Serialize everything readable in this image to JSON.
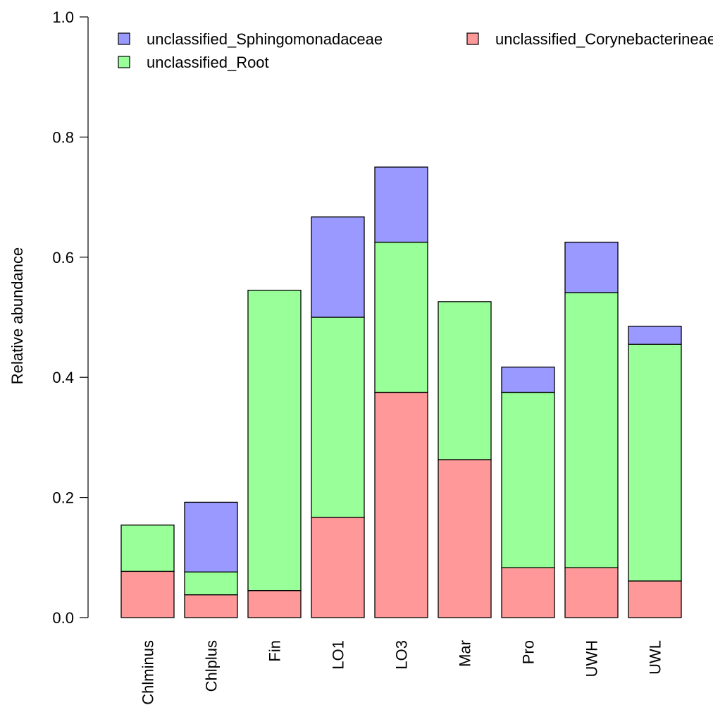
{
  "chart_data": {
    "type": "bar",
    "stacked": true,
    "ylabel": "Relative abundance",
    "ylim": [
      0,
      1.0
    ],
    "yticks": [
      "0.0",
      "0.2",
      "0.4",
      "0.6",
      "0.8",
      "1.0"
    ],
    "grid": false,
    "legend_position": "top",
    "categories": [
      "Chlminus",
      "Chlplus",
      "Fin",
      "LO1",
      "LO3",
      "Mar",
      "Pro",
      "UWH",
      "UWL"
    ],
    "series": [
      {
        "name": "unclassified_Corynebacterineae",
        "color": "#ff9999",
        "values": [
          0.077,
          0.038,
          0.045,
          0.167,
          0.375,
          0.263,
          0.083,
          0.083,
          0.061
        ]
      },
      {
        "name": "unclassified_Root",
        "color": "#99ff99",
        "values": [
          0.077,
          0.038,
          0.5,
          0.333,
          0.25,
          0.263,
          0.292,
          0.458,
          0.394
        ]
      },
      {
        "name": "unclassified_Sphingomonadaceae",
        "color": "#9999ff",
        "values": [
          0.0,
          0.116,
          0.0,
          0.167,
          0.125,
          0.0,
          0.042,
          0.084,
          0.03
        ]
      }
    ],
    "legend": [
      {
        "label": "unclassified_Sphingomonadaceae",
        "color": "#9999ff"
      },
      {
        "label": "unclassified_Corynebacterineae",
        "color": "#ff9999"
      },
      {
        "label": "unclassified_Root",
        "color": "#99ff99"
      }
    ]
  }
}
